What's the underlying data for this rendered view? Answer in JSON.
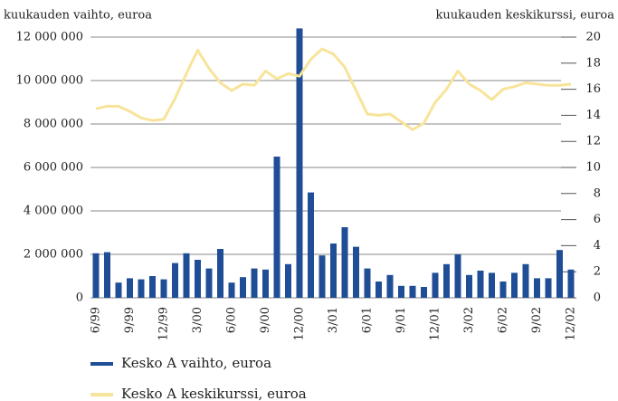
{
  "chart_data": {
    "type": "bar-line",
    "y_label": "kuukauden vaihto, euroa",
    "y2_label": "kuukauden keskikurssi, euroa",
    "categories": [
      "6/99",
      null,
      null,
      "9/99",
      null,
      null,
      "12/99",
      null,
      null,
      "3/00",
      null,
      null,
      "6/00",
      null,
      null,
      "9/00",
      null,
      null,
      "12/00",
      null,
      null,
      "3/01",
      null,
      null,
      "6/01",
      null,
      null,
      "9/01",
      null,
      null,
      "12/01",
      null,
      null,
      "3/02",
      null,
      null,
      "6/02",
      null,
      null,
      "9/02",
      null,
      null,
      "12/02"
    ],
    "series": [
      {
        "name": "Kesko A vaihto, euroa",
        "type": "bar",
        "color": "#1f4e96",
        "values": [
          2050000,
          2100000,
          700000,
          900000,
          850000,
          1000000,
          850000,
          1600000,
          2050000,
          1750000,
          1350000,
          2250000,
          700000,
          950000,
          1350000,
          1300000,
          6500000,
          1550000,
          12400000,
          4850000,
          1950000,
          2500000,
          3250000,
          2350000,
          1350000,
          750000,
          1050000,
          550000,
          550000,
          500000,
          1150000,
          1550000,
          2000000,
          1050000,
          1250000,
          1150000,
          750000,
          1150000,
          1550000,
          900000,
          900000,
          2200000,
          1300000
        ]
      },
      {
        "name": "Kesko A keskikurssi, euroa",
        "type": "line",
        "axis": "y2",
        "color": "#f7e49a",
        "values": [
          14.5,
          14.7,
          14.7,
          14.3,
          13.8,
          13.6,
          13.7,
          15.3,
          17.2,
          19.0,
          17.6,
          16.5,
          15.9,
          16.4,
          16.3,
          17.4,
          16.8,
          17.2,
          17.0,
          18.3,
          19.1,
          18.7,
          17.7,
          15.9,
          14.1,
          14.0,
          14.1,
          13.5,
          12.9,
          13.4,
          15.0,
          16.0,
          17.4,
          16.4,
          15.9,
          15.2,
          16.0,
          16.2,
          16.5,
          16.4,
          16.3,
          16.3,
          16.4
        ]
      }
    ],
    "ylim": [
      0,
      12000000
    ],
    "yticks": [
      0,
      {
        "value": 2000000,
        "label": "2 000 000"
      },
      {
        "value": 4000000,
        "label": "4 000 000"
      },
      {
        "value": 6000000,
        "label": "6 000 000"
      },
      {
        "value": 8000000,
        "label": "8 000 000"
      },
      {
        "value": 10000000,
        "label": "10 000 000"
      },
      {
        "value": 12000000,
        "label": "12 000 000"
      }
    ],
    "y2lim": [
      0,
      20
    ],
    "y2ticks": [
      0,
      2,
      4,
      6,
      8,
      10,
      12,
      14,
      16,
      18,
      20
    ],
    "grid": true
  }
}
